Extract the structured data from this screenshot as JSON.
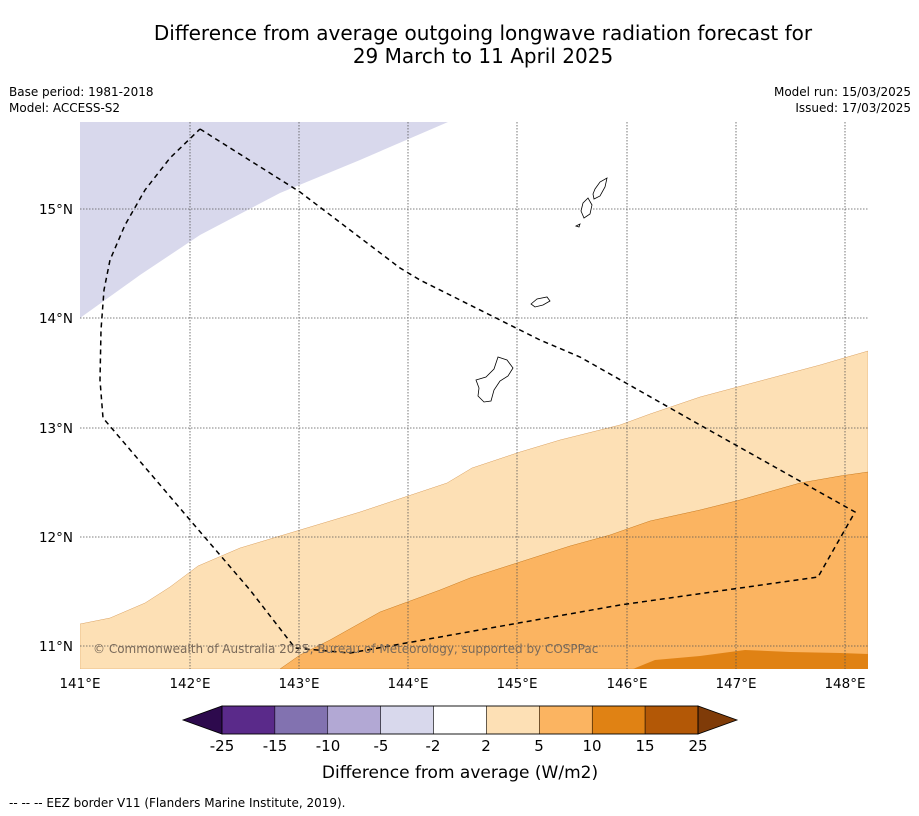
{
  "title_line1": "Difference from average outgoing longwave radiation forecast for",
  "title_line2": "29 March to 11 April 2025",
  "meta": {
    "base_period": "Base period: 1981-2018",
    "model": "Model: ACCESS-S2",
    "model_run": "Model run: 15/03/2025",
    "issued": "Issued: 17/03/2025"
  },
  "map": {
    "lon_labels": [
      "141°E",
      "142°E",
      "143°E",
      "144°E",
      "145°E",
      "146°E",
      "147°E",
      "148°E"
    ],
    "lat_labels": [
      "15°N",
      "14°N",
      "13°N",
      "12°N",
      "11°N"
    ],
    "copyright": "© Commonwealth of Australia 2025, Bureau of Meteorology, supported by COSPPac"
  },
  "colorbar": {
    "title": "Difference from average (W/m2)",
    "labels": [
      "-25",
      "-15",
      "-10",
      "-5",
      "-2",
      "2",
      "5",
      "10",
      "15",
      "25"
    ],
    "colors": {
      "under": "#2d0a4d",
      "bins": [
        "#5a2a8a",
        "#8272b0",
        "#b2a8d4",
        "#d8d8ec",
        "#ffffff",
        "#fde0b5",
        "#fbb461",
        "#e08214",
        "#b35806"
      ],
      "over": "#7f3b08"
    }
  },
  "footer": "--  --  -- EEZ border V11 (Flanders Marine Institute, 2019)."
}
